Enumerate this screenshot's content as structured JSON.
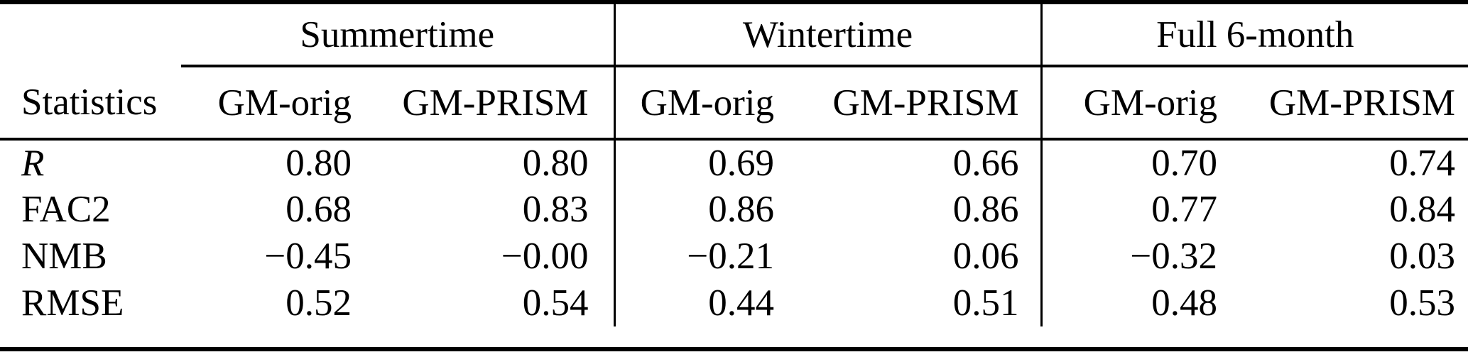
{
  "table": {
    "stat_column_header": "Statistics",
    "groups": [
      {
        "label": "Summertime"
      },
      {
        "label": "Wintertime"
      },
      {
        "label": "Full 6-month"
      }
    ],
    "sub_columns": [
      "GM-orig",
      "GM-PRISM"
    ],
    "rows": [
      {
        "label": "R",
        "values": [
          "0.80",
          "0.80",
          "0.69",
          "0.66",
          "0.70",
          "0.74"
        ]
      },
      {
        "label": "FAC2",
        "values": [
          "0.68",
          "0.83",
          "0.86",
          "0.86",
          "0.77",
          "0.84"
        ]
      },
      {
        "label": "NMB",
        "values": [
          "−0.45",
          "−0.00",
          "−0.21",
          "0.06",
          "−0.32",
          "0.03"
        ]
      },
      {
        "label": "RMSE",
        "values": [
          "0.52",
          "0.54",
          "0.44",
          "0.51",
          "0.48",
          "0.53"
        ]
      }
    ],
    "colors": {
      "rule": "#000000",
      "text": "#000000",
      "background": "#ffffff"
    }
  }
}
